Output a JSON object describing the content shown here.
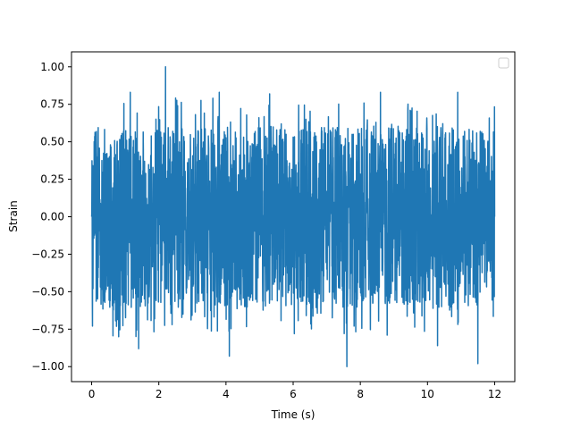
{
  "chart_data": {
    "type": "line",
    "title": "",
    "xlabel": "Time (s)",
    "ylabel": "Strain",
    "xlim": [
      -0.6,
      12.6
    ],
    "ylim": [
      -1.1,
      1.1
    ],
    "x_ticks": [
      0,
      2,
      4,
      6,
      8,
      10,
      12
    ],
    "x_tick_labels": [
      "0",
      "2",
      "4",
      "6",
      "8",
      "10",
      "12"
    ],
    "y_ticks": [
      -1.0,
      -0.75,
      -0.5,
      -0.25,
      0.0,
      0.25,
      0.5,
      0.75,
      1.0
    ],
    "y_tick_labels": [
      "−1.00",
      "−0.75",
      "−0.50",
      "−0.25",
      "0.00",
      "0.25",
      "0.50",
      "0.75",
      "1.00"
    ],
    "grid": false,
    "legend": {
      "placement": "upper-right",
      "entries": []
    },
    "series": [
      {
        "color": "#1f77b4",
        "x_start": 0,
        "x_end": 12,
        "samples": 2400,
        "y_range": [
          -1.0,
          1.0
        ],
        "y_typical": [
          -0.6,
          0.5
        ],
        "peaks": [
          {
            "x": 2.2,
            "y": 1.0
          },
          {
            "x": 7.6,
            "y": -1.0
          },
          {
            "x": 11.5,
            "y": -0.98
          },
          {
            "x": 4.1,
            "y": -0.93
          },
          {
            "x": 1.4,
            "y": -0.88
          },
          {
            "x": 1.15,
            "y": 0.83
          },
          {
            "x": 3.8,
            "y": 0.83
          },
          {
            "x": 8.6,
            "y": 0.83
          },
          {
            "x": 10.9,
            "y": 0.83
          },
          {
            "x": 5.3,
            "y": 0.82
          },
          {
            "x": 10.3,
            "y": -0.86
          }
        ]
      }
    ]
  }
}
